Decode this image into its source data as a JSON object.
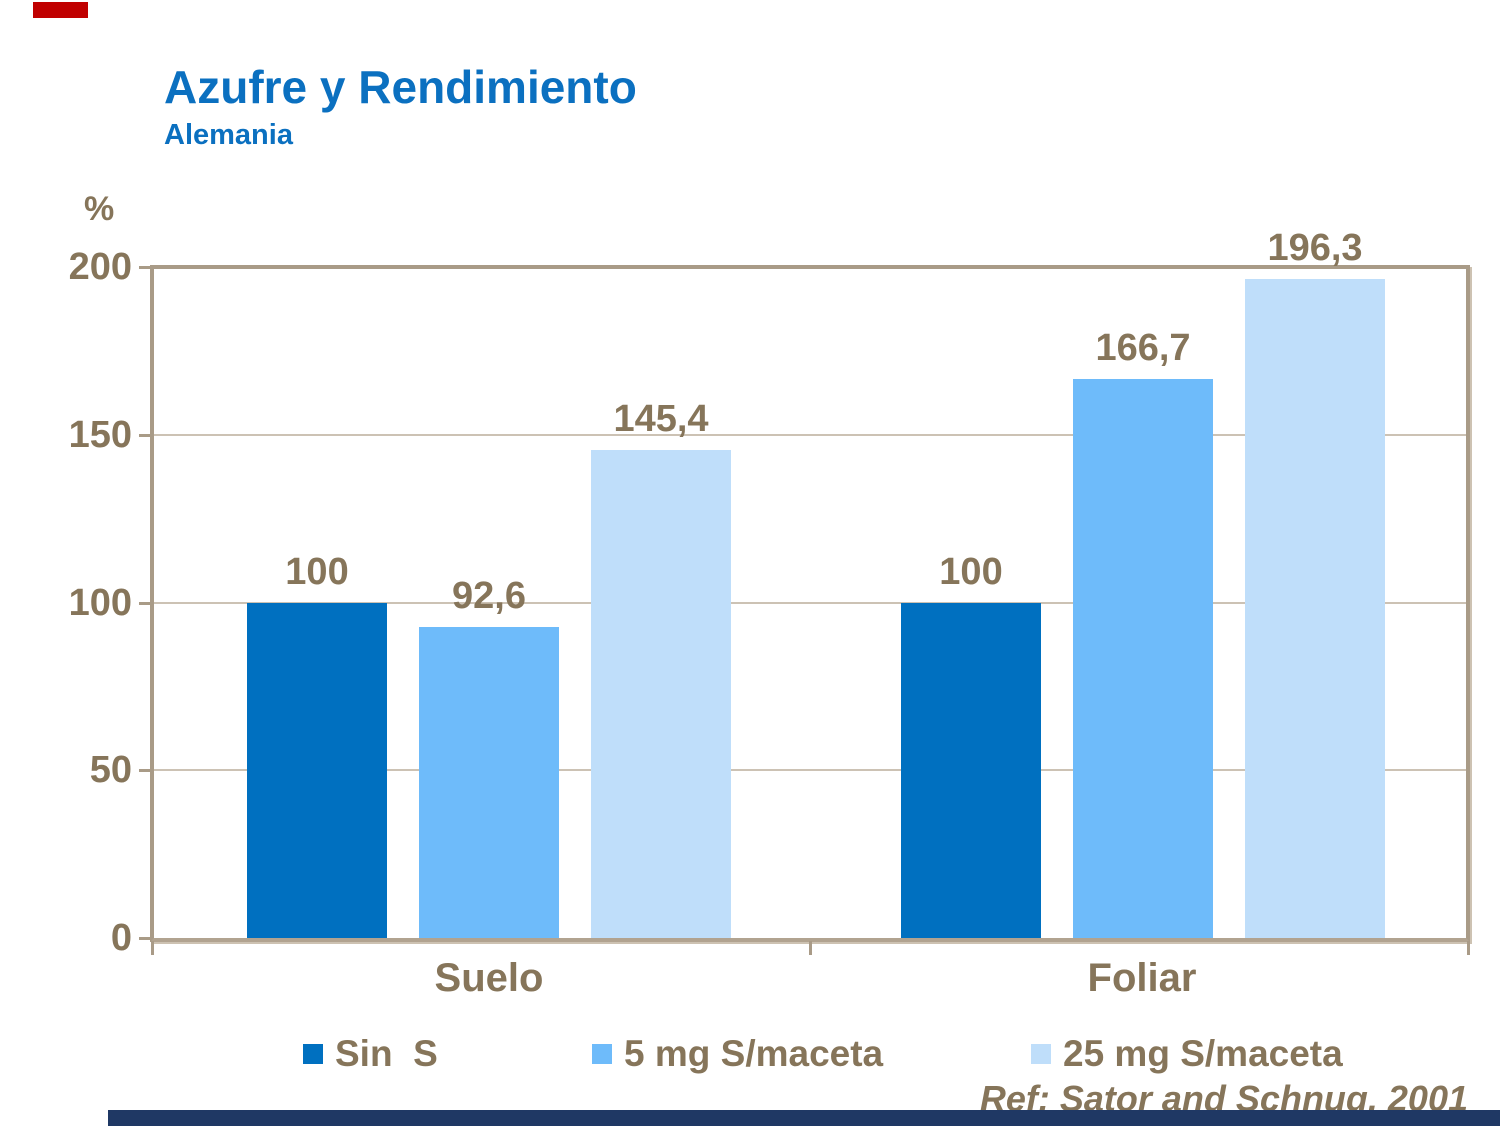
{
  "slide": {
    "title": "Azufre y Rendimiento",
    "subtitle": "Alemania",
    "unit_label": "%",
    "reference": "Ref: Sator and Schnug, 2001",
    "title_color": "#0B70C0",
    "text_color": "#86755A",
    "accent_red": "#C00000",
    "footer_bar_color": "#1F3864"
  },
  "chart_data": {
    "type": "bar",
    "title": "Azufre y Rendimiento",
    "subtitle": "Alemania",
    "xlabel": "",
    "ylabel": "%",
    "ylim": [
      0,
      200
    ],
    "yticks": [
      0,
      50,
      100,
      150,
      200
    ],
    "gridlines": [
      50,
      100,
      150
    ],
    "grid": true,
    "legend_position": "bottom",
    "categories": [
      "Suelo",
      "Foliar"
    ],
    "series": [
      {
        "name": "Sin  S",
        "color": "#0070C0",
        "values": [
          100,
          100
        ],
        "display": [
          "100",
          "100"
        ]
      },
      {
        "name": "5 mg S/maceta",
        "color": "#6EBBFA",
        "values": [
          92.6,
          166.7
        ],
        "display": [
          "92,6",
          "166,7"
        ]
      },
      {
        "name": "25 mg S/maceta",
        "color": "#BFDEFA",
        "values": [
          145.4,
          196.3
        ],
        "display": [
          "145,4",
          "196,3"
        ]
      }
    ],
    "annotation": "Ref: Sator and Schnug, 2001"
  }
}
